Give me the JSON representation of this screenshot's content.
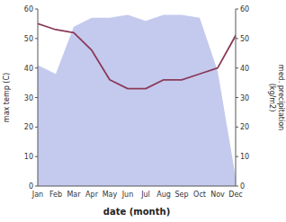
{
  "chart_data": {
    "type": "line",
    "categories": [
      "Jan",
      "Feb",
      "Mar",
      "Apr",
      "May",
      "Jun",
      "Jul",
      "Aug",
      "Sep",
      "Oct",
      "Nov",
      "Dec"
    ],
    "xlabel": "date (month)",
    "ylabel": "max temp (C)",
    "y2label": "med. precipitation\n(kg/m2)",
    "series": [
      {
        "type": "area",
        "axis": "y2",
        "color": "#b0b8e8",
        "values": [
          41,
          38,
          54,
          57,
          57,
          58,
          56,
          58,
          58,
          57,
          39,
          3
        ]
      },
      {
        "type": "line",
        "color": "#8b3a5a",
        "values": [
          55,
          53,
          52,
          46,
          36,
          33,
          33,
          36,
          36,
          38,
          40,
          51
        ]
      }
    ],
    "ylim": [
      0,
      60
    ],
    "yticks": [
      0,
      10,
      20,
      30,
      40,
      50,
      60
    ],
    "y2lim": [
      0,
      60
    ],
    "y2ticks": [
      0,
      10,
      20,
      30,
      40,
      50,
      60
    ],
    "grid": false
  }
}
